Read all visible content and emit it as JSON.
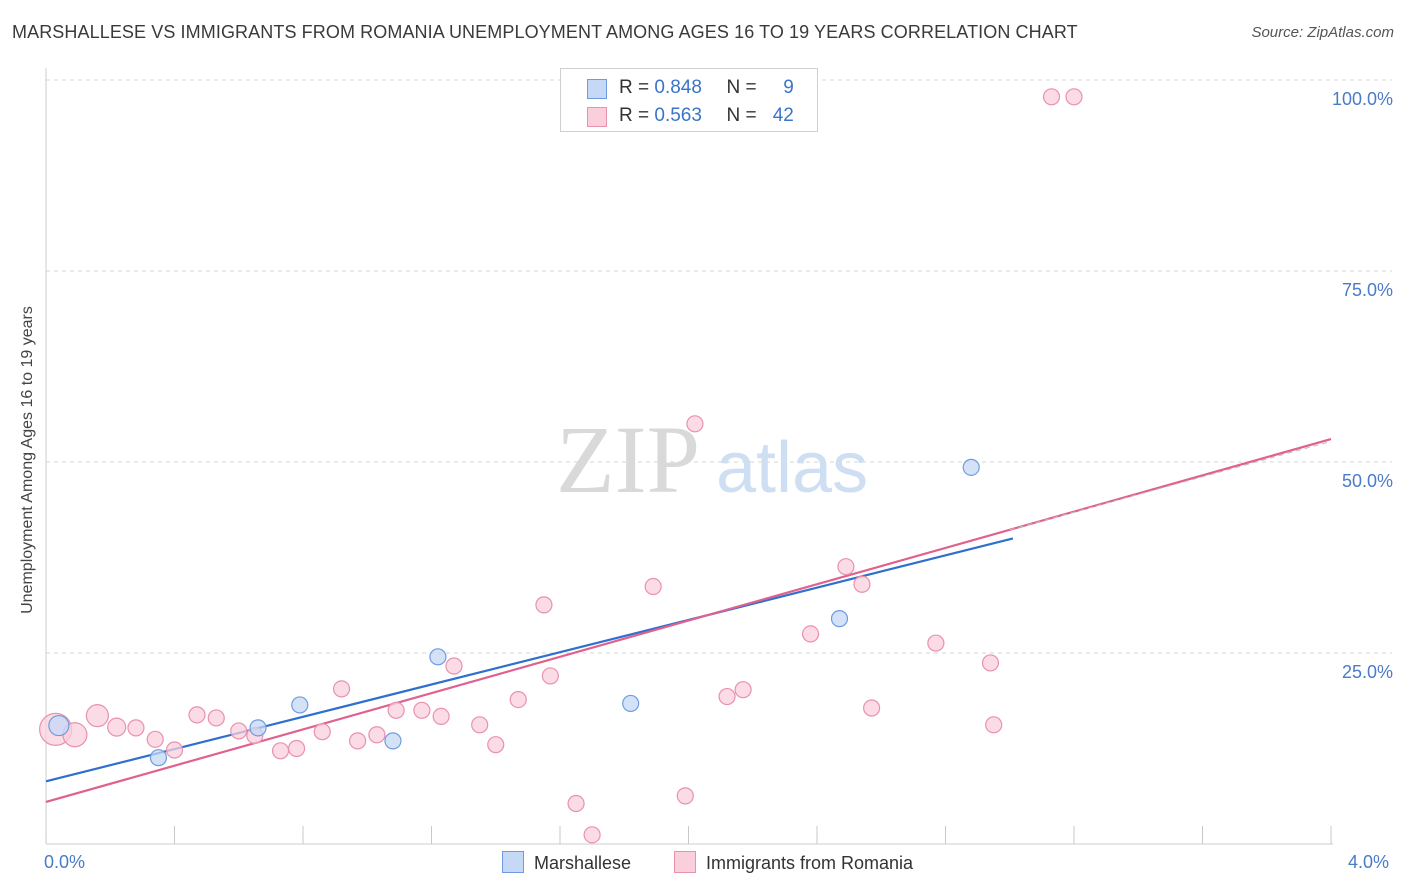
{
  "title": "MARSHALLESE VS IMMIGRANTS FROM ROMANIA UNEMPLOYMENT AMONG AGES 16 TO 19 YEARS CORRELATION CHART",
  "source": "Source: ZipAtlas.com",
  "watermark": {
    "zip": "ZIP",
    "atlas": "atlas"
  },
  "legend": {
    "rows": [
      {
        "r_label": "R = ",
        "r_value": "0.848",
        "n_label": "N = ",
        "n_value": "9"
      },
      {
        "r_label": "R = ",
        "r_value": "0.563",
        "n_label": "N = ",
        "n_value": "42"
      }
    ]
  },
  "colors": {
    "blue_fill": "#c5d8f5",
    "blue_stroke": "#6f9be0",
    "blue_line": "#2f6fcd",
    "pink_fill": "#f9cfdc",
    "pink_stroke": "#e991ad",
    "pink_line": "#e0608e",
    "axis_text": "#4a7bc8",
    "grid": "#d6d6d6"
  },
  "chart_data": {
    "type": "scatter",
    "ylabel": "Unemployment Among Ages 16 to 19 years",
    "xlim": [
      0,
      4.0
    ],
    "ylim": [
      0,
      100
    ],
    "x_tick_labels": [
      "0.0%",
      "4.0%"
    ],
    "y_ticks": [
      25,
      50,
      75,
      100
    ],
    "y_tick_labels": [
      "25.0%",
      "50.0%",
      "75.0%",
      "100.0%"
    ],
    "grid": true,
    "legend_position": "top-center",
    "series": [
      {
        "name": "Marshallese",
        "points": [
          {
            "x": 0.04,
            "y": 15.5,
            "s": 10
          },
          {
            "x": 0.35,
            "y": 11.3,
            "s": 8
          },
          {
            "x": 0.66,
            "y": 15.2,
            "s": 8
          },
          {
            "x": 0.79,
            "y": 18.2,
            "s": 8
          },
          {
            "x": 1.08,
            "y": 13.5,
            "s": 8
          },
          {
            "x": 1.22,
            "y": 24.5,
            "s": 8
          },
          {
            "x": 1.82,
            "y": 18.4,
            "s": 8
          },
          {
            "x": 2.47,
            "y": 29.5,
            "s": 8
          },
          {
            "x": 2.88,
            "y": 49.3,
            "s": 8
          }
        ],
        "trend": {
          "x": [
            0,
            3.01
          ],
          "y": [
            8.2,
            40.0
          ]
        }
      },
      {
        "name": "Immigrants from Romania",
        "points": [
          {
            "x": 0.03,
            "y": 15.0,
            "s": 16
          },
          {
            "x": 0.09,
            "y": 14.3,
            "s": 12
          },
          {
            "x": 0.16,
            "y": 16.8,
            "s": 11
          },
          {
            "x": 0.22,
            "y": 15.3,
            "s": 9
          },
          {
            "x": 0.28,
            "y": 15.2,
            "s": 8
          },
          {
            "x": 0.34,
            "y": 13.7,
            "s": 8
          },
          {
            "x": 0.4,
            "y": 12.3,
            "s": 8
          },
          {
            "x": 0.47,
            "y": 16.9,
            "s": 8
          },
          {
            "x": 0.53,
            "y": 16.5,
            "s": 8
          },
          {
            "x": 0.6,
            "y": 14.8,
            "s": 8
          },
          {
            "x": 0.65,
            "y": 14.2,
            "s": 8
          },
          {
            "x": 0.73,
            "y": 12.2,
            "s": 8
          },
          {
            "x": 0.78,
            "y": 12.5,
            "s": 8
          },
          {
            "x": 0.86,
            "y": 14.7,
            "s": 8
          },
          {
            "x": 0.92,
            "y": 20.3,
            "s": 8
          },
          {
            "x": 0.97,
            "y": 13.5,
            "s": 8
          },
          {
            "x": 1.03,
            "y": 14.3,
            "s": 8
          },
          {
            "x": 1.09,
            "y": 17.5,
            "s": 8
          },
          {
            "x": 1.17,
            "y": 17.5,
            "s": 8
          },
          {
            "x": 1.23,
            "y": 16.7,
            "s": 8
          },
          {
            "x": 1.27,
            "y": 23.3,
            "s": 8
          },
          {
            "x": 1.35,
            "y": 15.6,
            "s": 8
          },
          {
            "x": 1.4,
            "y": 13.0,
            "s": 8
          },
          {
            "x": 1.47,
            "y": 18.9,
            "s": 8
          },
          {
            "x": 1.55,
            "y": 31.3,
            "s": 8
          },
          {
            "x": 1.57,
            "y": 22.0,
            "s": 8
          },
          {
            "x": 1.65,
            "y": 5.3,
            "s": 8
          },
          {
            "x": 1.7,
            "y": 1.2,
            "s": 8
          },
          {
            "x": 1.89,
            "y": 33.7,
            "s": 8
          },
          {
            "x": 1.99,
            "y": 6.3,
            "s": 8
          },
          {
            "x": 2.02,
            "y": 55.0,
            "s": 8
          },
          {
            "x": 2.12,
            "y": 19.3,
            "s": 8
          },
          {
            "x": 2.17,
            "y": 20.2,
            "s": 8
          },
          {
            "x": 2.38,
            "y": 27.5,
            "s": 8
          },
          {
            "x": 2.49,
            "y": 36.3,
            "s": 8
          },
          {
            "x": 2.54,
            "y": 34.0,
            "s": 8
          },
          {
            "x": 2.57,
            "y": 17.8,
            "s": 8
          },
          {
            "x": 2.77,
            "y": 26.3,
            "s": 8
          },
          {
            "x": 2.94,
            "y": 23.7,
            "s": 8
          },
          {
            "x": 2.95,
            "y": 15.6,
            "s": 8
          },
          {
            "x": 3.13,
            "y": 97.8,
            "s": 8
          },
          {
            "x": 3.2,
            "y": 97.8,
            "s": 8
          }
        ],
        "trend": {
          "x": [
            0,
            4.0
          ],
          "y": [
            5.5,
            53.0
          ]
        },
        "trend_dashed_end": [
          4.0,
          52.7
        ]
      }
    ]
  }
}
